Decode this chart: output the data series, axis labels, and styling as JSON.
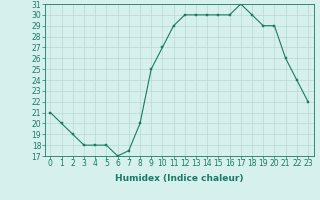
{
  "x": [
    0,
    1,
    2,
    3,
    4,
    5,
    6,
    7,
    8,
    9,
    10,
    11,
    12,
    13,
    14,
    15,
    16,
    17,
    18,
    19,
    20,
    21,
    22,
    23
  ],
  "y": [
    21,
    20,
    19,
    18,
    18,
    18,
    17,
    17.5,
    20,
    25,
    27,
    29,
    30,
    30,
    30,
    30,
    30,
    31,
    30,
    29,
    29,
    26,
    24,
    22
  ],
  "line_color": "#1a7a64",
  "marker": "s",
  "marker_size": 2.0,
  "bg_color": "#d6f0ee",
  "grid_color": "#b8d8d4",
  "xlabel": "Humidex (Indice chaleur)",
  "ylim": [
    17,
    31
  ],
  "yticks": [
    17,
    18,
    19,
    20,
    21,
    22,
    23,
    24,
    25,
    26,
    27,
    28,
    29,
    30,
    31
  ],
  "xticks": [
    0,
    1,
    2,
    3,
    4,
    5,
    6,
    7,
    8,
    9,
    10,
    11,
    12,
    13,
    14,
    15,
    16,
    17,
    18,
    19,
    20,
    21,
    22,
    23
  ],
  "tick_fontsize": 5.5,
  "label_fontsize": 6.5
}
